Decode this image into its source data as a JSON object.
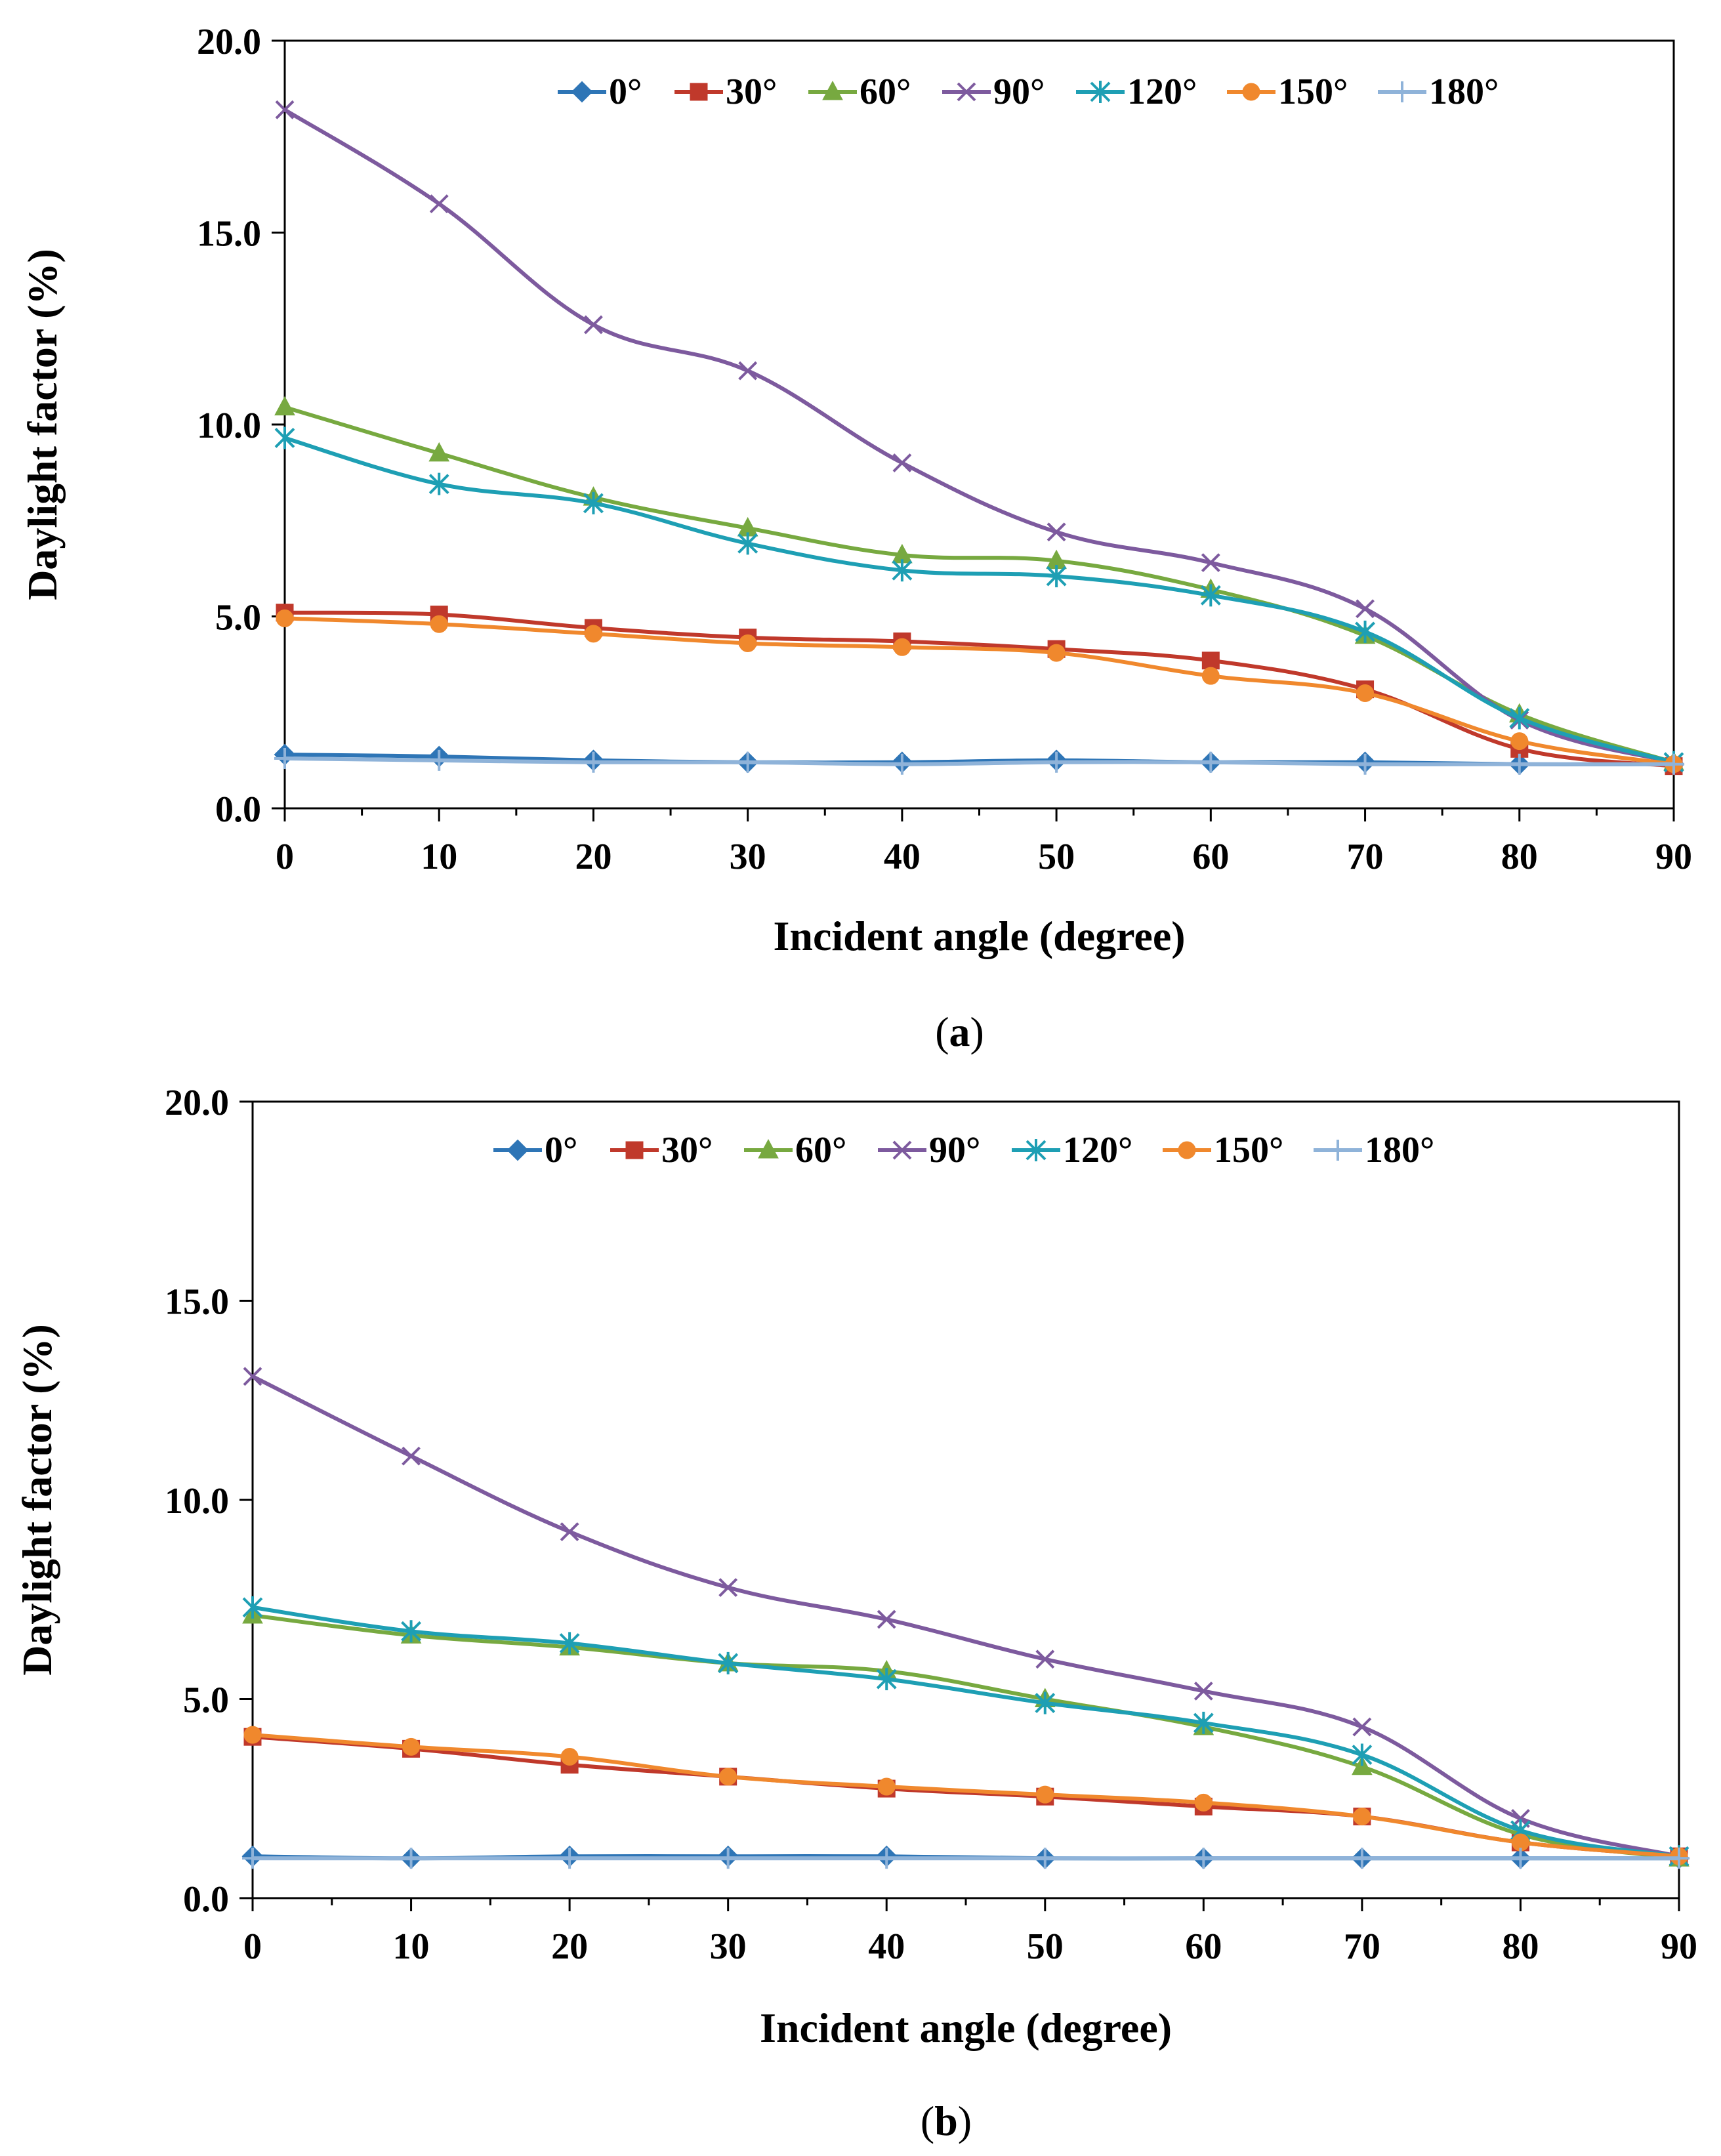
{
  "chart_data": [
    {
      "type": "line",
      "caption": "a",
      "xlabel": "Incident angle (degree)",
      "ylabel": "Daylight factor (%)",
      "xlim": [
        0,
        90
      ],
      "ylim": [
        0,
        20
      ],
      "x_ticks": [
        "0",
        "10",
        "20",
        "30",
        "40",
        "50",
        "60",
        "70",
        "80",
        "90"
      ],
      "y_ticks": [
        "0.0",
        "5.0",
        "10.0",
        "15.0",
        "20.0"
      ],
      "legend_position": "top-right",
      "grid": false,
      "x": [
        0,
        10,
        20,
        30,
        40,
        50,
        60,
        70,
        80,
        90
      ],
      "series": [
        {
          "name": "0°",
          "color": "#2e75b6",
          "marker": "diamond",
          "values": [
            1.4,
            1.35,
            1.25,
            1.2,
            1.2,
            1.25,
            1.2,
            1.2,
            1.15,
            1.15
          ]
        },
        {
          "name": "30°",
          "color": "#c0392b",
          "marker": "square",
          "values": [
            5.1,
            5.05,
            4.7,
            4.45,
            4.35,
            4.15,
            3.85,
            3.1,
            1.55,
            1.1
          ]
        },
        {
          "name": "60°",
          "color": "#77a940",
          "marker": "triangle",
          "values": [
            10.45,
            9.25,
            8.1,
            7.3,
            6.6,
            6.45,
            5.7,
            4.5,
            2.45,
            1.2
          ]
        },
        {
          "name": "90°",
          "color": "#7d5a9e",
          "marker": "x",
          "values": [
            18.2,
            15.75,
            12.6,
            11.4,
            9.0,
            7.2,
            6.4,
            5.2,
            2.3,
            1.2
          ]
        },
        {
          "name": "120°",
          "color": "#1e9fb4",
          "marker": "asterisk",
          "values": [
            9.65,
            8.45,
            7.95,
            6.9,
            6.2,
            6.05,
            5.55,
            4.6,
            2.35,
            1.2
          ]
        },
        {
          "name": "150°",
          "color": "#f0882d",
          "marker": "circle",
          "values": [
            4.95,
            4.8,
            4.55,
            4.3,
            4.2,
            4.05,
            3.45,
            3.0,
            1.75,
            1.15
          ]
        },
        {
          "name": "180°",
          "color": "#8fb3d9",
          "marker": "plus",
          "values": [
            1.3,
            1.25,
            1.2,
            1.2,
            1.15,
            1.2,
            1.2,
            1.15,
            1.15,
            1.15
          ]
        }
      ]
    },
    {
      "type": "line",
      "caption": "b",
      "xlabel": "Incident angle (degree)",
      "ylabel": "Daylight factor (%)",
      "xlim": [
        0,
        90
      ],
      "ylim": [
        0,
        20
      ],
      "x_ticks": [
        "0",
        "10",
        "20",
        "30",
        "40",
        "50",
        "60",
        "70",
        "80",
        "90"
      ],
      "y_ticks": [
        "0.0",
        "5.0",
        "10.0",
        "15.0",
        "20.0"
      ],
      "legend_position": "top-right",
      "grid": false,
      "x": [
        0,
        10,
        20,
        30,
        40,
        50,
        60,
        70,
        80,
        90
      ],
      "series": [
        {
          "name": "0°",
          "color": "#2e75b6",
          "marker": "diamond",
          "values": [
            1.05,
            1.0,
            1.05,
            1.05,
            1.05,
            1.0,
            1.0,
            1.0,
            1.0,
            1.0
          ]
        },
        {
          "name": "30°",
          "color": "#c0392b",
          "marker": "square",
          "values": [
            4.05,
            3.75,
            3.35,
            3.05,
            2.75,
            2.55,
            2.3,
            2.05,
            1.4,
            1.05
          ]
        },
        {
          "name": "60°",
          "color": "#77a940",
          "marker": "triangle",
          "values": [
            7.1,
            6.6,
            6.3,
            5.9,
            5.7,
            5.0,
            4.3,
            3.3,
            1.6,
            1.0
          ]
        },
        {
          "name": "90°",
          "color": "#7d5a9e",
          "marker": "x",
          "values": [
            13.1,
            11.1,
            9.2,
            7.8,
            7.0,
            6.0,
            5.2,
            4.3,
            2.0,
            1.05
          ]
        },
        {
          "name": "120°",
          "color": "#1e9fb4",
          "marker": "asterisk",
          "values": [
            7.3,
            6.7,
            6.4,
            5.9,
            5.5,
            4.9,
            4.4,
            3.6,
            1.7,
            1.05
          ]
        },
        {
          "name": "150°",
          "color": "#f0882d",
          "marker": "circle",
          "values": [
            4.1,
            3.8,
            3.55,
            3.05,
            2.8,
            2.6,
            2.4,
            2.05,
            1.4,
            1.05
          ]
        },
        {
          "name": "180°",
          "color": "#8fb3d9",
          "marker": "plus",
          "values": [
            1.0,
            1.0,
            1.0,
            1.0,
            1.0,
            1.0,
            1.0,
            1.0,
            1.0,
            1.0
          ]
        }
      ]
    }
  ]
}
